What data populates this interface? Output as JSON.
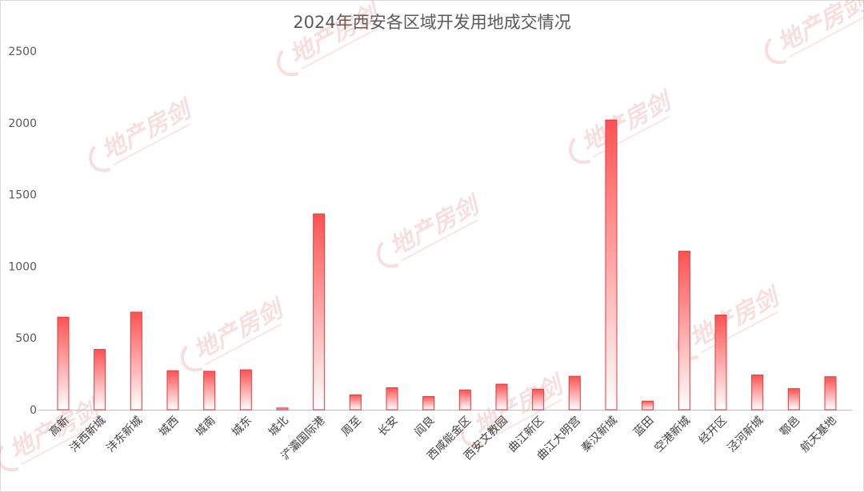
{
  "chart_data": {
    "type": "bar",
    "title": "2024年西安各区域开发用地成交情况",
    "categories": [
      "高新",
      "沣西新城",
      "沣东新城",
      "城西",
      "城南",
      "城东",
      "城北",
      "浐灞国际港",
      "周至",
      "长安",
      "阎良",
      "西咸能金区",
      "西安文教园",
      "曲江新区",
      "曲江大明宫",
      "秦汉新城",
      "蓝田",
      "空港新城",
      "经开区",
      "泾河新城",
      "鄠邑",
      "航天基地"
    ],
    "values": [
      645,
      420,
      680,
      272,
      268,
      278,
      12,
      1365,
      103,
      153,
      92,
      138,
      178,
      143,
      233,
      2020,
      60,
      1105,
      660,
      242,
      147,
      230
    ],
    "ylim": [
      0,
      2500
    ],
    "yticks": [
      0,
      500,
      1000,
      1500,
      2000,
      2500
    ],
    "xlabel": "",
    "ylabel": "",
    "grid": false,
    "legend": "none",
    "bar_gradient_top": "#ff5252",
    "bar_gradient_bottom": "#ffffff",
    "bar_stroke": "#e0393e",
    "axis_color": "#bfbfbf",
    "text_color": "#595959"
  },
  "watermark": {
    "text": "地产房剑",
    "color": "#e36b6b"
  }
}
